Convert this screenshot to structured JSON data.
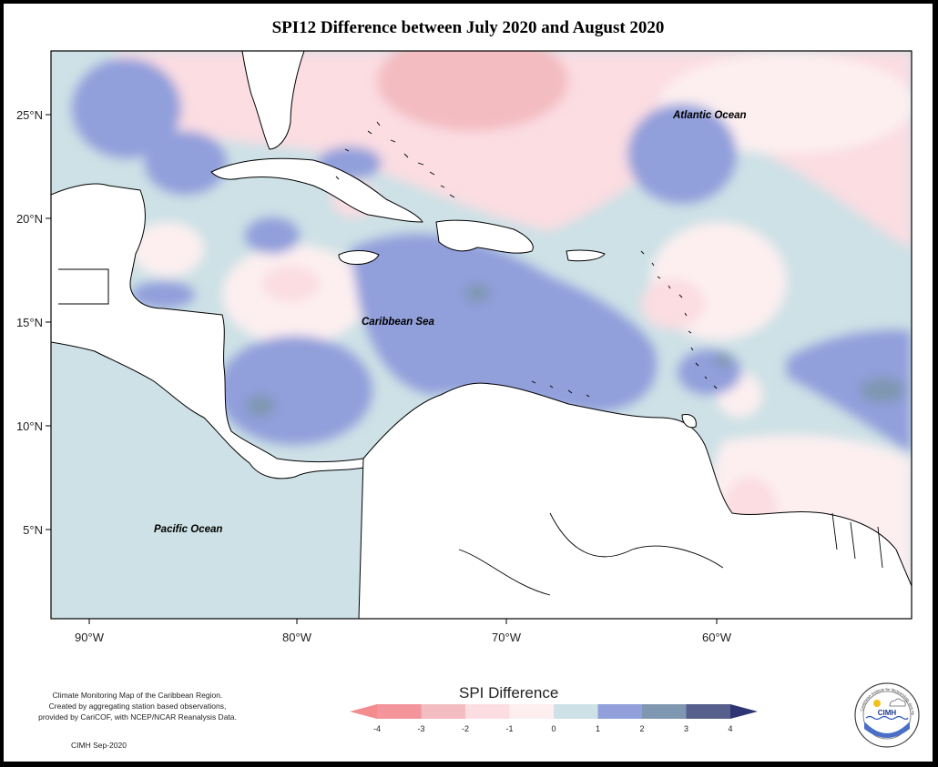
{
  "title": "SPI12 Difference between July 2020 and August 2020",
  "map": {
    "lon_labels": [
      "90°W",
      "80°W",
      "70°W",
      "60°W"
    ],
    "lat_labels": [
      "25°N",
      "20°N",
      "15°N",
      "10°N",
      "5°N"
    ],
    "labels": {
      "atlantic": "Atlantic Ocean",
      "caribbean": "Caribbean Sea",
      "pacific": "Pacific Ocean"
    }
  },
  "legend": {
    "title": "SPI Difference",
    "ticks": [
      "-4",
      "-3",
      "-2",
      "-1",
      "0",
      "1",
      "2",
      "3",
      "4"
    ],
    "colors": [
      "#f3959b",
      "#f3bcc1",
      "#fbdde2",
      "#fdeff0",
      "#cde1e6",
      "#919fdb",
      "#7f97b1",
      "#575f8d"
    ],
    "arrow_low": "#f28c8e",
    "arrow_high": "#2e3573"
  },
  "credits": {
    "line1": "Climate Monitoring Map of the Caribbean Region.",
    "line2": "Created by aggregating station based observations,",
    "line3": "provided by CariCOF, with NCEP/NCAR Reanalysis Data."
  },
  "footer": "CIMH Sep-2020",
  "logo": {
    "text": "CIMH",
    "ring_text": "Caribbean Institute for Meteorology and Hydrology"
  }
}
